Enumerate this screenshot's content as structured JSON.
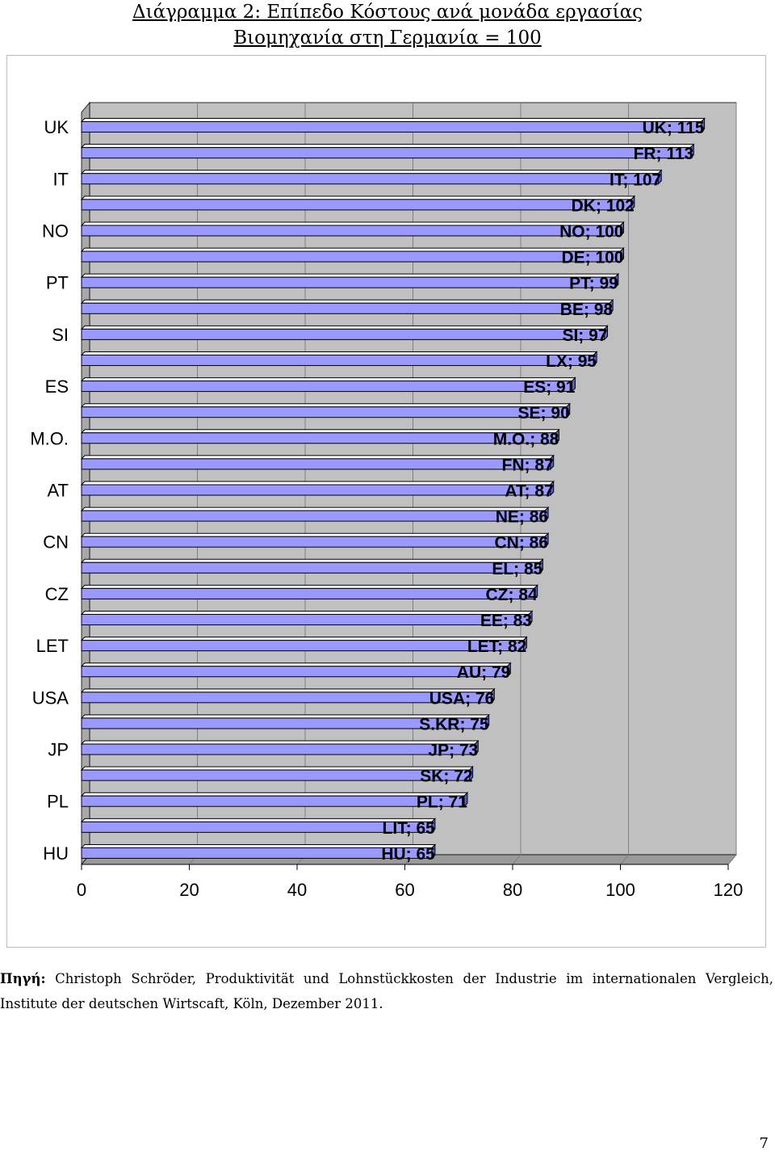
{
  "title_line1": "Διάγραμμα 2: Επίπεδο Κόστους ανά μονάδα εργασίας",
  "title_line2": "Βιομηχανία στη Γερμανία = 100",
  "source_label": "Πηγή:",
  "source_text": "Christoph Schröder, Produktivität und Lohnstückkosten der Industrie im internationalen Vergleich, Institute der deutschen Wirtscaft, Köln, Dezember 2011.",
  "page_number": "7",
  "colors": {
    "bar_fill": "#9999ff",
    "bar_top": "#ffffff",
    "bar_edge": "#000000",
    "plot_back": "#c0c0c0",
    "plot_floor": "#9a9a9a",
    "grid": "#808080"
  },
  "chart_data": {
    "type": "bar",
    "orientation": "horizontal",
    "categories": [
      "UK",
      "FR",
      "IT",
      "DK",
      "NO",
      "DE",
      "PT",
      "BE",
      "SI",
      "LX",
      "ES",
      "SE",
      "M.O.",
      "FN",
      "AT",
      "NE",
      "CN",
      "EL",
      "CZ",
      "EE",
      "LET",
      "AU",
      "USA",
      "S.KR",
      "JP",
      "SK",
      "PL",
      "LIT",
      "HU"
    ],
    "values": [
      115,
      113,
      107,
      102,
      100,
      100,
      99,
      98,
      97,
      95,
      91,
      90,
      88,
      87,
      87,
      86,
      86,
      85,
      84,
      83,
      82,
      79,
      76,
      75,
      73,
      72,
      71,
      65,
      65
    ],
    "data_labels": [
      "UK; 115",
      "FR; 113",
      "IT; 107",
      "DK; 102",
      "NO; 100",
      "DE; 100",
      "PT; 99",
      "BE; 98",
      "SI; 97",
      "LX; 95",
      "ES; 91",
      "SE; 90",
      "M.O.; 88",
      "FN; 87",
      "AT; 87",
      "NE; 86",
      "CN; 86",
      "EL; 85",
      "CZ; 84",
      "EE; 83",
      "LET; 82",
      "AU; 79",
      "USA; 76",
      "S.KR; 75",
      "JP; 73",
      "SK; 72",
      "PL; 71",
      "LIT; 65",
      "HU; 65"
    ],
    "y_tick_labels": [
      "UK",
      "IT",
      "NO",
      "PT",
      "SI",
      "ES",
      "M.O.",
      "AT",
      "CN",
      "CZ",
      "LET",
      "USA",
      "JP",
      "PL",
      "HU"
    ],
    "x_ticks": [
      0,
      20,
      40,
      60,
      80,
      100,
      120
    ],
    "xlim": [
      0,
      120
    ],
    "grid": true,
    "legend": "none"
  }
}
